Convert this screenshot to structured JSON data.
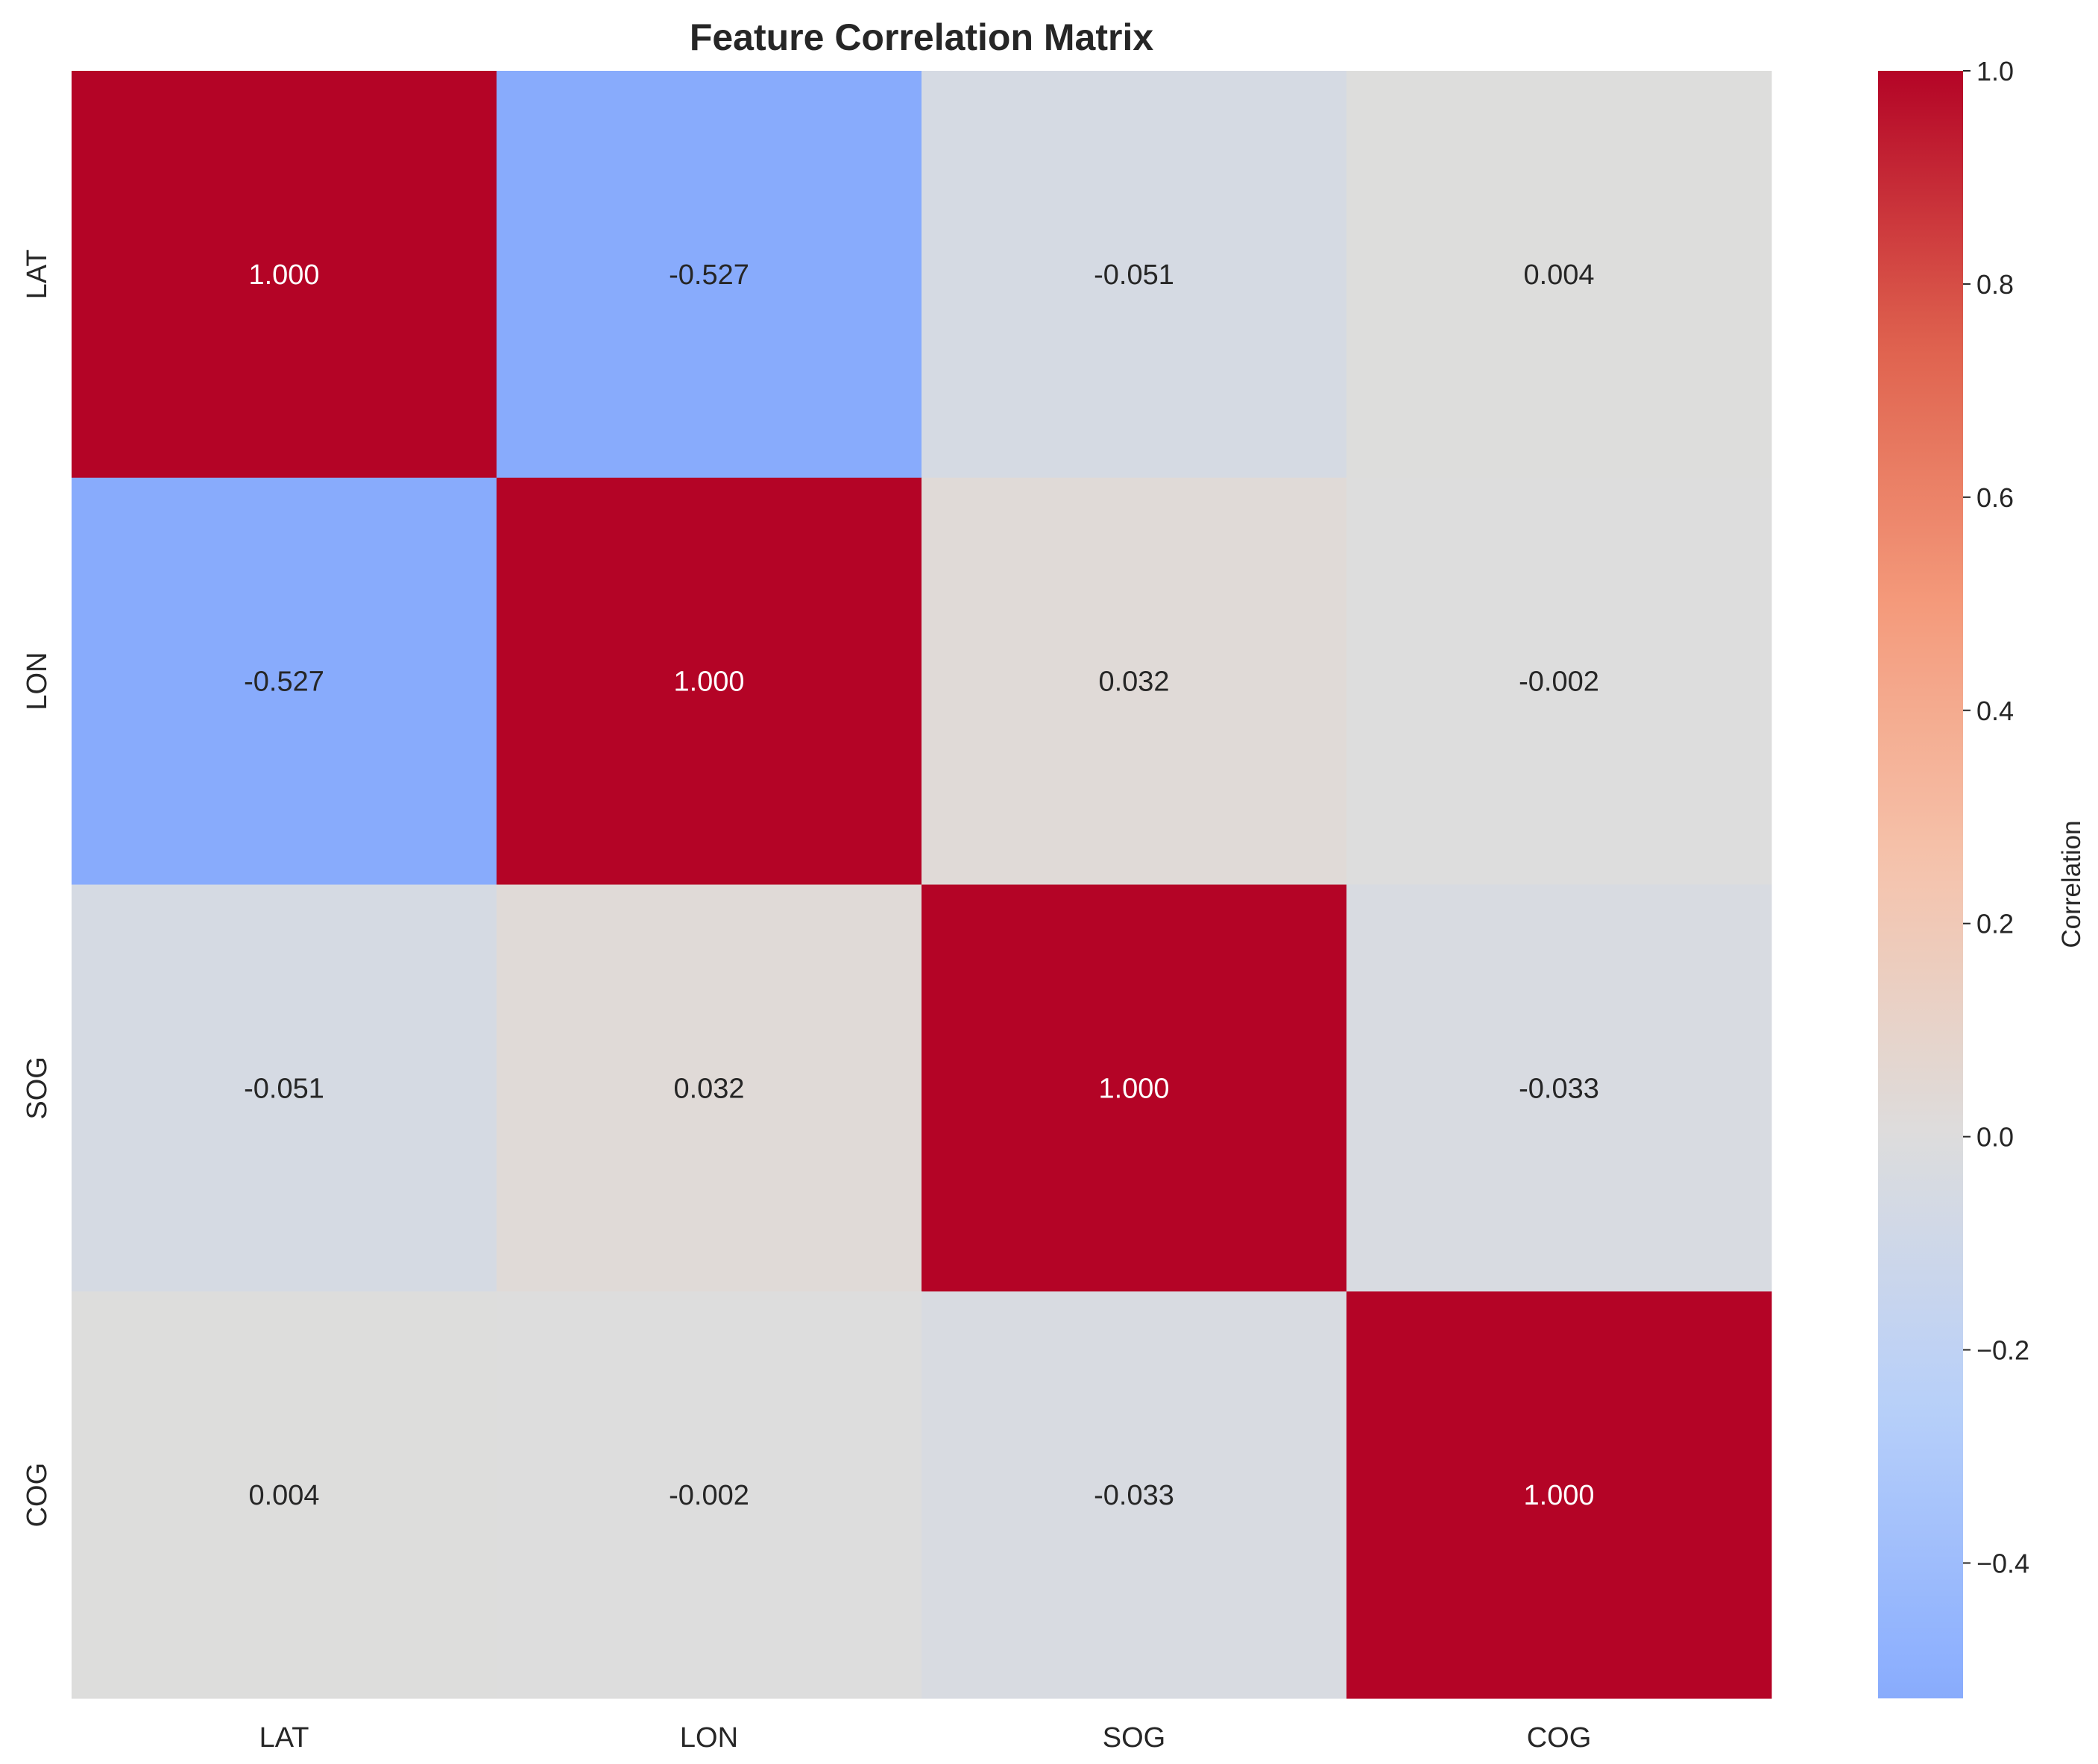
{
  "chart_data": {
    "type": "heatmap",
    "title": "Feature Correlation Matrix",
    "x_labels": [
      "LAT",
      "LON",
      "SOG",
      "COG"
    ],
    "y_labels": [
      "LAT",
      "LON",
      "SOG",
      "COG"
    ],
    "values": [
      [
        1.0,
        -0.527,
        -0.051,
        0.004
      ],
      [
        -0.527,
        1.0,
        0.032,
        -0.002
      ],
      [
        -0.051,
        0.032,
        1.0,
        -0.033
      ],
      [
        0.004,
        -0.002,
        -0.033,
        1.0
      ]
    ],
    "cell_text": [
      [
        "1.000",
        "-0.527",
        "-0.051",
        "0.004"
      ],
      [
        "-0.527",
        "1.000",
        "0.032",
        "-0.002"
      ],
      [
        "-0.051",
        "0.032",
        "1.000",
        "-0.033"
      ],
      [
        "0.004",
        "-0.002",
        "-0.033",
        "1.000"
      ]
    ],
    "colormap": "coolwarm",
    "vmin": -0.527,
    "vmax": 1.0,
    "center": 0.0,
    "colorbar": {
      "label": "Correlation",
      "ticks": [
        1.0,
        0.8,
        0.6,
        0.4,
        0.2,
        0.0,
        -0.2,
        -0.4
      ],
      "tick_labels": [
        "1.0",
        "0.8",
        "0.6",
        "0.4",
        "0.2",
        "0.0",
        "−0.2",
        "−0.4"
      ]
    },
    "grid": false,
    "legend": "right"
  }
}
